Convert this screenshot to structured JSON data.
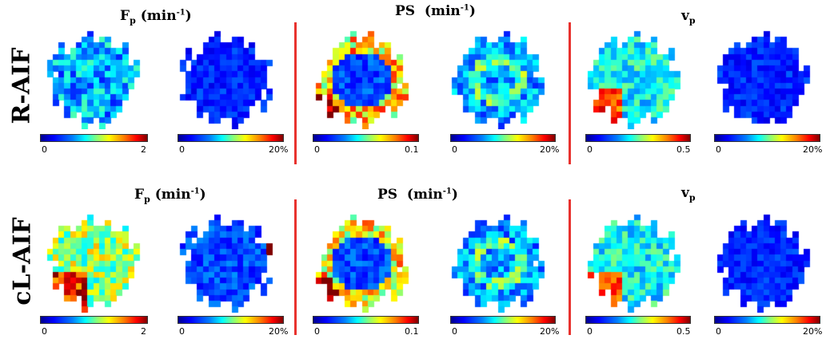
{
  "rows": [
    {
      "label": "R-AIF",
      "headers": {
        "fp": "F",
        "fp_sub": "p",
        "fp_unit_pre": "(min",
        "fp_sup": "-1",
        "fp_unit_post": ")",
        "ps": "PS",
        "ps_unit_pre": "(min",
        "ps_sup": "-1",
        "ps_unit_post": ")",
        "vp": "v",
        "vp_sub": "p"
      }
    },
    {
      "label": "cL-AIF",
      "headers": {
        "fp": "F",
        "fp_sub": "p",
        "fp_unit_pre": "(min",
        "fp_sup": "-1",
        "fp_unit_post": ")",
        "ps": "PS",
        "ps_unit_pre": "(min",
        "ps_sup": "-1",
        "ps_unit_post": ")",
        "vp": "v",
        "vp_sub": "p"
      }
    }
  ],
  "colorbars": {
    "fp": {
      "min": "0",
      "max": "2"
    },
    "ps": {
      "min": "0",
      "max": "0.1"
    },
    "vp": {
      "min": "0",
      "max": "0.5"
    },
    "error": {
      "min": "0",
      "max": "20%"
    }
  },
  "colors": {
    "divider": "#e8322e",
    "colormap": "jet"
  }
}
